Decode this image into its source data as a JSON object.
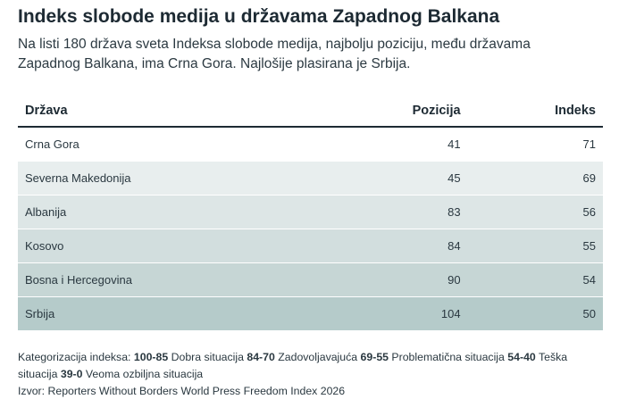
{
  "title": "Indeks slobode medija u državama Zapadnog Balkana",
  "subtitle": "Na listi 180 država sveta Indeksa slobode medija, najbolju poziciju, među državama Zapadnog Balkana, ima Crna Gora. Najlošije plasirana je Srbija.",
  "chart_data": {
    "type": "table",
    "columns": [
      "Država",
      "Pozicija",
      "Indeks"
    ],
    "rows": [
      {
        "drzava": "Crna Gora",
        "pozicija": "41",
        "indeks": "71",
        "bg": "#ffffff"
      },
      {
        "drzava": "Severna Makedonija",
        "pozicija": "45",
        "indeks": "69",
        "bg": "#e8eeee"
      },
      {
        "drzava": "Albanija",
        "pozicija": "83",
        "indeks": "56",
        "bg": "#dde6e6"
      },
      {
        "drzava": "Kosovo",
        "pozicija": "84",
        "indeks": "55",
        "bg": "#d2dede"
      },
      {
        "drzava": "Bosna i Hercegovina",
        "pozicija": "90",
        "indeks": "54",
        "bg": "#c6d6d5"
      },
      {
        "drzava": "Srbija",
        "pozicija": "104",
        "indeks": "50",
        "bg": "#b5cbca"
      }
    ]
  },
  "legend": {
    "label": "Kategorizacija indeksa:",
    "items": [
      {
        "range": "100-85",
        "text": "Dobra situacija"
      },
      {
        "range": "84-70",
        "text": "Zadovoljavajuća"
      },
      {
        "range": "69-55",
        "text": "Problematična situacija"
      },
      {
        "range": "54-40",
        "text": "Teška situacija"
      },
      {
        "range": "39-0",
        "text": "Veoma ozbiljna situacija"
      }
    ]
  },
  "source": "Izvor: Reporters Without Borders World Press Freedom Index 2026"
}
